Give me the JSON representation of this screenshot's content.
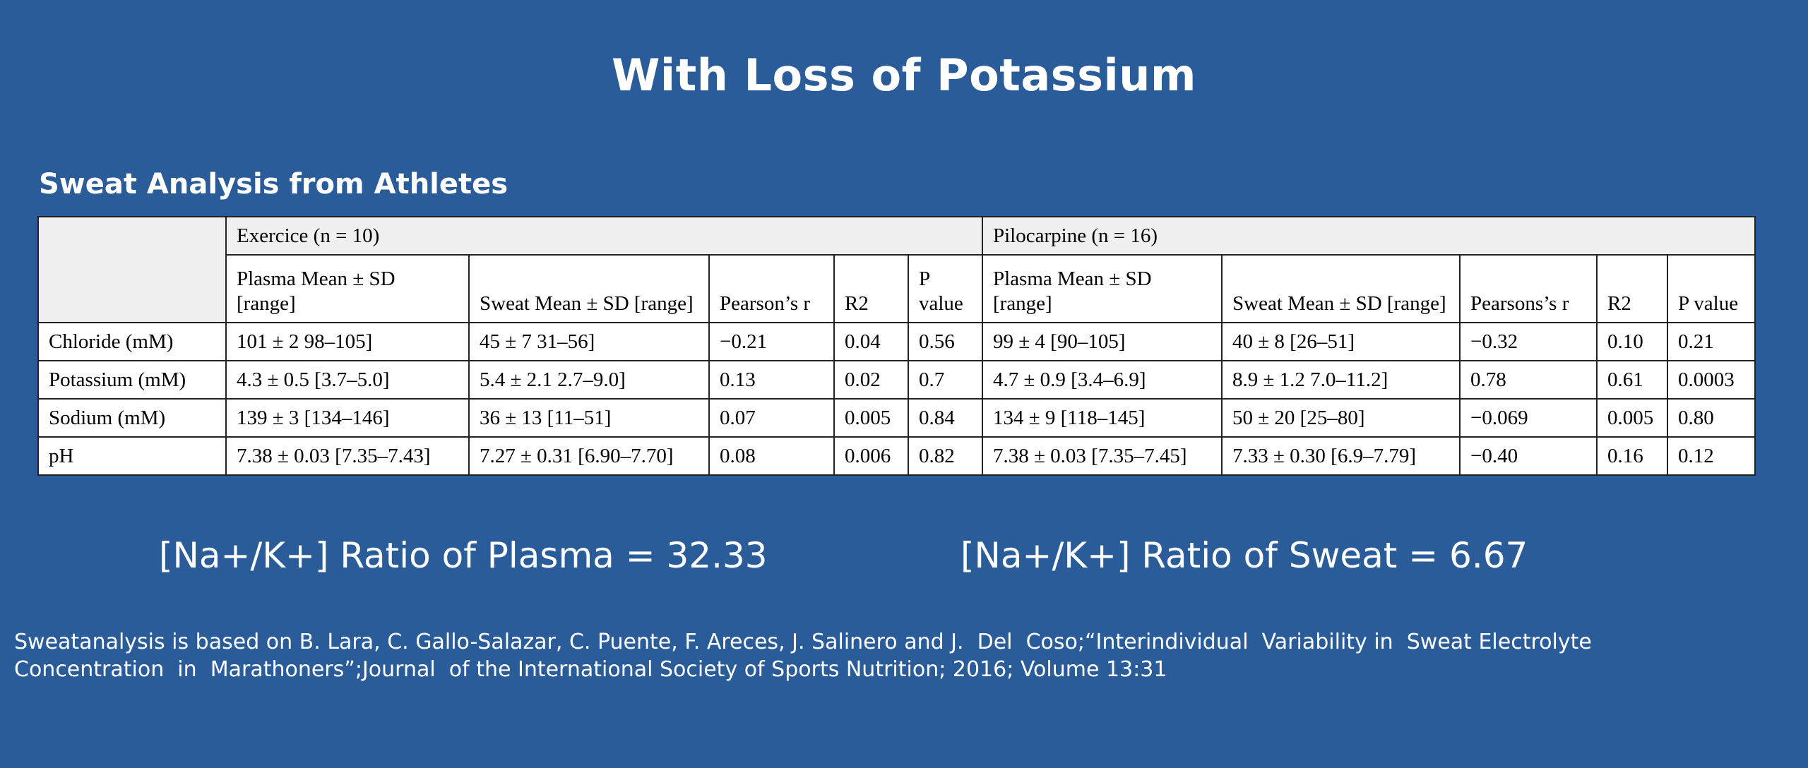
{
  "slide": {
    "title": "With Loss of Potassium",
    "table_caption": "Sweat Analysis from Athletes"
  },
  "table": {
    "groups": [
      "Exercice (n = 10)",
      "Pilocarpine (n = 16)"
    ],
    "columns": [
      "Plasma Mean ± SD [range]",
      "Sweat Mean ± SD [range]",
      "Pearson’s r",
      "R2",
      "P value",
      "Plasma Mean ± SD [range]",
      "Sweat Mean ± SD [range]",
      "Pearsons’s r",
      "R2",
      "P value"
    ],
    "rows": [
      {
        "label": "Chloride (mM)",
        "cells": [
          "101 ± 2 98–105]",
          "45 ± 7 31–56]",
          "−0.21",
          "0.04",
          "0.56",
          "99 ± 4 [90–105]",
          "40 ± 8 [26–51]",
          "−0.32",
          "0.10",
          "0.21"
        ]
      },
      {
        "label": "Potassium (mM)",
        "cells": [
          "4.3 ± 0.5 [3.7–5.0]",
          "5.4 ± 2.1 2.7–9.0]",
          "0.13",
          "0.02",
          "0.7",
          "4.7 ± 0.9 [3.4–6.9]",
          "8.9 ± 1.2 7.0–11.2]",
          "0.78",
          "0.61",
          "0.0003"
        ]
      },
      {
        "label": "Sodium (mM)",
        "cells": [
          "139 ± 3 [134–146]",
          "36 ± 13 [11–51]",
          "0.07",
          "0.005",
          "0.84",
          "134 ± 9 [118–145]",
          "50 ± 20 [25–80]",
          "−0.069",
          "0.005",
          "0.80"
        ]
      },
      {
        "label": "pH",
        "cells": [
          "7.38 ± 0.03 [7.35–7.43]",
          "7.27 ± 0.31 [6.90–7.70]",
          "0.08",
          "0.006",
          "0.82",
          "7.38 ± 0.03 [7.35–7.45]",
          "7.33 ± 0.30 [6.9–7.79]",
          "−0.40",
          "0.16",
          "0.12"
        ]
      }
    ]
  },
  "ratios": {
    "plasma": "[Na+/K+] Ratio of Plasma = 32.33",
    "sweat": "[Na+/K+] Ratio of Sweat = 6.67"
  },
  "citation": {
    "line1": "Sweatanalysis is based on B. Lara, C. Gallo-Salazar, C. Puente, F. Areces, J. Salinero and J.  Del  Coso;“Interindividual  Variability in  Sweat Electrolyte",
    "line2": "Concentration  in  Marathoners”;Journal  of the International Society of Sports Nutrition; 2016; Volume 13:31"
  },
  "colors": {
    "background": "#2a5c9a",
    "text": "#ffffff",
    "table_header_bg": "#f0f0f0"
  }
}
